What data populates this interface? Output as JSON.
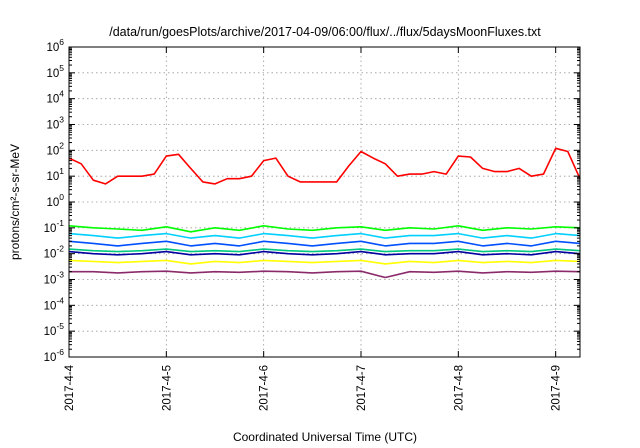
{
  "chart_data": {
    "type": "line",
    "title": "/data/run/goesPlots/archive/2017-04-09/06:00/flux/../flux/5daysMoonFluxes.txt",
    "xlabel": "Coordinated Universal Time (UTC)",
    "ylabel": "protons/cm²-s-sr-MeV",
    "yscale": "log",
    "ylim": [
      1e-06,
      1000000.0
    ],
    "ytick_exponents": [
      -6,
      -5,
      -4,
      -3,
      -2,
      -1,
      0,
      1,
      2,
      3,
      4,
      5,
      6
    ],
    "xlim": [
      "2017-04-04 00:00",
      "2017-04-09 06:00"
    ],
    "xticks": [
      {
        "date": "2017-04-04 00:00",
        "label": "2017-4-4"
      },
      {
        "date": "2017-04-05 00:00",
        "label": "2017-4-5"
      },
      {
        "date": "2017-04-06 00:00",
        "label": "2017-4-6"
      },
      {
        "date": "2017-04-07 00:00",
        "label": "2017-4-7"
      },
      {
        "date": "2017-04-08 00:00",
        "label": "2017-4-8"
      },
      {
        "date": "2017-04-09 00:00",
        "label": "2017-4-9"
      }
    ],
    "grid": true,
    "legend": "none",
    "series": [
      {
        "color": "#ff0000",
        "x": [
          "2017-04-04 00:00",
          "2017-04-04 03:00",
          "2017-04-04 06:00",
          "2017-04-04 09:00",
          "2017-04-04 12:00",
          "2017-04-04 15:00",
          "2017-04-04 18:00",
          "2017-04-04 21:00",
          "2017-04-05 00:00",
          "2017-04-05 03:00",
          "2017-04-05 06:00",
          "2017-04-05 09:00",
          "2017-04-05 12:00",
          "2017-04-05 15:00",
          "2017-04-05 18:00",
          "2017-04-05 21:00",
          "2017-04-06 00:00",
          "2017-04-06 03:00",
          "2017-04-06 06:00",
          "2017-04-06 09:00",
          "2017-04-06 12:00",
          "2017-04-06 15:00",
          "2017-04-06 18:00",
          "2017-04-06 21:00",
          "2017-04-07 00:00",
          "2017-04-07 03:00",
          "2017-04-07 06:00",
          "2017-04-07 09:00",
          "2017-04-07 12:00",
          "2017-04-07 15:00",
          "2017-04-07 18:00",
          "2017-04-07 21:00",
          "2017-04-08 00:00",
          "2017-04-08 03:00",
          "2017-04-08 06:00",
          "2017-04-08 09:00",
          "2017-04-08 12:00",
          "2017-04-08 15:00",
          "2017-04-08 18:00",
          "2017-04-08 21:00",
          "2017-04-09 00:00",
          "2017-04-09 03:00",
          "2017-04-09 06:00"
        ],
        "y": [
          50,
          30,
          7,
          5,
          10,
          10,
          10,
          12,
          60,
          70,
          20,
          6,
          5,
          8,
          8,
          10,
          40,
          50,
          10,
          6,
          6,
          6,
          6,
          25,
          90,
          50,
          30,
          10,
          12,
          12,
          15,
          12,
          60,
          55,
          20,
          15,
          15,
          20,
          10,
          12,
          120,
          90,
          8
        ]
      },
      {
        "color": "#00ff00",
        "x": [
          "2017-04-04 00:00",
          "2017-04-04 06:00",
          "2017-04-04 12:00",
          "2017-04-04 18:00",
          "2017-04-05 00:00",
          "2017-04-05 06:00",
          "2017-04-05 12:00",
          "2017-04-05 18:00",
          "2017-04-06 00:00",
          "2017-04-06 06:00",
          "2017-04-06 12:00",
          "2017-04-06 18:00",
          "2017-04-07 00:00",
          "2017-04-07 06:00",
          "2017-04-07 12:00",
          "2017-04-07 18:00",
          "2017-04-08 00:00",
          "2017-04-08 06:00",
          "2017-04-08 12:00",
          "2017-04-08 18:00",
          "2017-04-09 00:00",
          "2017-04-09 06:00"
        ],
        "y": [
          0.12,
          0.1,
          0.09,
          0.08,
          0.11,
          0.07,
          0.1,
          0.08,
          0.12,
          0.09,
          0.08,
          0.1,
          0.11,
          0.08,
          0.1,
          0.09,
          0.12,
          0.08,
          0.1,
          0.09,
          0.11,
          0.1
        ]
      },
      {
        "color": "#00d0ff",
        "x": [
          "2017-04-04 00:00",
          "2017-04-04 06:00",
          "2017-04-04 12:00",
          "2017-04-04 18:00",
          "2017-04-05 00:00",
          "2017-04-05 06:00",
          "2017-04-05 12:00",
          "2017-04-05 18:00",
          "2017-04-06 00:00",
          "2017-04-06 06:00",
          "2017-04-06 12:00",
          "2017-04-06 18:00",
          "2017-04-07 00:00",
          "2017-04-07 06:00",
          "2017-04-07 12:00",
          "2017-04-07 18:00",
          "2017-04-08 00:00",
          "2017-04-08 06:00",
          "2017-04-08 12:00",
          "2017-04-08 18:00",
          "2017-04-09 00:00",
          "2017-04-09 06:00"
        ],
        "y": [
          0.06,
          0.05,
          0.04,
          0.05,
          0.06,
          0.04,
          0.05,
          0.04,
          0.06,
          0.05,
          0.04,
          0.05,
          0.06,
          0.04,
          0.05,
          0.05,
          0.06,
          0.04,
          0.05,
          0.04,
          0.06,
          0.05
        ]
      },
      {
        "color": "#0050ff",
        "x": [
          "2017-04-04 00:00",
          "2017-04-04 06:00",
          "2017-04-04 12:00",
          "2017-04-04 18:00",
          "2017-04-05 00:00",
          "2017-04-05 06:00",
          "2017-04-05 12:00",
          "2017-04-05 18:00",
          "2017-04-06 00:00",
          "2017-04-06 06:00",
          "2017-04-06 12:00",
          "2017-04-06 18:00",
          "2017-04-07 00:00",
          "2017-04-07 06:00",
          "2017-04-07 12:00",
          "2017-04-07 18:00",
          "2017-04-08 00:00",
          "2017-04-08 06:00",
          "2017-04-08 12:00",
          "2017-04-08 18:00",
          "2017-04-09 00:00",
          "2017-04-09 06:00"
        ],
        "y": [
          0.03,
          0.025,
          0.02,
          0.025,
          0.03,
          0.02,
          0.025,
          0.02,
          0.03,
          0.025,
          0.02,
          0.025,
          0.03,
          0.02,
          0.025,
          0.025,
          0.03,
          0.02,
          0.025,
          0.02,
          0.03,
          0.025
        ]
      },
      {
        "color": "#00c880",
        "x": [
          "2017-04-04 00:00",
          "2017-04-04 06:00",
          "2017-04-04 12:00",
          "2017-04-04 18:00",
          "2017-04-05 00:00",
          "2017-04-05 06:00",
          "2017-04-05 12:00",
          "2017-04-05 18:00",
          "2017-04-06 00:00",
          "2017-04-06 06:00",
          "2017-04-06 12:00",
          "2017-04-06 18:00",
          "2017-04-07 00:00",
          "2017-04-07 06:00",
          "2017-04-07 12:00",
          "2017-04-07 18:00",
          "2017-04-08 00:00",
          "2017-04-08 06:00",
          "2017-04-08 12:00",
          "2017-04-08 18:00",
          "2017-04-09 00:00",
          "2017-04-09 06:00"
        ],
        "y": [
          0.015,
          0.013,
          0.012,
          0.013,
          0.015,
          0.012,
          0.013,
          0.012,
          0.015,
          0.013,
          0.012,
          0.013,
          0.015,
          0.012,
          0.013,
          0.013,
          0.015,
          0.012,
          0.013,
          0.012,
          0.015,
          0.013
        ]
      },
      {
        "color": "#0000a0",
        "x": [
          "2017-04-04 00:00",
          "2017-04-04 06:00",
          "2017-04-04 12:00",
          "2017-04-04 18:00",
          "2017-04-05 00:00",
          "2017-04-05 06:00",
          "2017-04-05 12:00",
          "2017-04-05 18:00",
          "2017-04-06 00:00",
          "2017-04-06 06:00",
          "2017-04-06 12:00",
          "2017-04-06 18:00",
          "2017-04-07 00:00",
          "2017-04-07 06:00",
          "2017-04-07 12:00",
          "2017-04-07 18:00",
          "2017-04-08 00:00",
          "2017-04-08 06:00",
          "2017-04-08 12:00",
          "2017-04-08 18:00",
          "2017-04-09 00:00",
          "2017-04-09 06:00"
        ],
        "y": [
          0.012,
          0.01,
          0.009,
          0.01,
          0.012,
          0.009,
          0.01,
          0.009,
          0.012,
          0.01,
          0.009,
          0.01,
          0.012,
          0.009,
          0.01,
          0.01,
          0.012,
          0.009,
          0.01,
          0.009,
          0.012,
          0.01
        ]
      },
      {
        "color": "#ffff00",
        "x": [
          "2017-04-04 00:00",
          "2017-04-04 06:00",
          "2017-04-04 12:00",
          "2017-04-04 18:00",
          "2017-04-05 00:00",
          "2017-04-05 06:00",
          "2017-04-05 12:00",
          "2017-04-05 18:00",
          "2017-04-06 00:00",
          "2017-04-06 06:00",
          "2017-04-06 12:00",
          "2017-04-06 18:00",
          "2017-04-07 00:00",
          "2017-04-07 06:00",
          "2017-04-07 12:00",
          "2017-04-07 18:00",
          "2017-04-08 00:00",
          "2017-04-08 06:00",
          "2017-04-08 12:00",
          "2017-04-08 18:00",
          "2017-04-09 00:00",
          "2017-04-09 06:00"
        ],
        "y": [
          0.0055,
          0.005,
          0.0045,
          0.005,
          0.0055,
          0.004,
          0.005,
          0.0045,
          0.0055,
          0.005,
          0.0045,
          0.005,
          0.0055,
          0.004,
          0.005,
          0.0045,
          0.0055,
          0.0045,
          0.005,
          0.0045,
          0.0055,
          0.005
        ]
      },
      {
        "color": "#8b2a6b",
        "x": [
          "2017-04-04 00:00",
          "2017-04-04 06:00",
          "2017-04-04 12:00",
          "2017-04-04 18:00",
          "2017-04-05 00:00",
          "2017-04-05 06:00",
          "2017-04-05 12:00",
          "2017-04-05 18:00",
          "2017-04-06 00:00",
          "2017-04-06 06:00",
          "2017-04-06 12:00",
          "2017-04-06 18:00",
          "2017-04-07 00:00",
          "2017-04-07 06:00",
          "2017-04-07 12:00",
          "2017-04-07 18:00",
          "2017-04-08 00:00",
          "2017-04-08 06:00",
          "2017-04-08 12:00",
          "2017-04-08 18:00",
          "2017-04-09 00:00",
          "2017-04-09 06:00"
        ],
        "y": [
          0.002,
          0.002,
          0.0018,
          0.002,
          0.0021,
          0.0018,
          0.002,
          0.0019,
          0.0021,
          0.002,
          0.0018,
          0.002,
          0.0021,
          0.0012,
          0.002,
          0.0019,
          0.0021,
          0.0018,
          0.002,
          0.0019,
          0.0021,
          0.002
        ]
      }
    ]
  }
}
